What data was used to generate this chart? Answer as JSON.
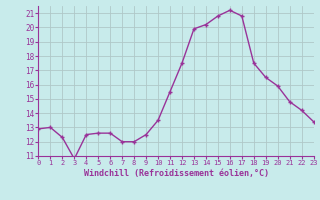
{
  "x": [
    0,
    1,
    2,
    3,
    4,
    5,
    6,
    7,
    8,
    9,
    10,
    11,
    12,
    13,
    14,
    15,
    16,
    17,
    18,
    19,
    20,
    21,
    22,
    23
  ],
  "y": [
    12.9,
    13.0,
    12.3,
    10.8,
    12.5,
    12.6,
    12.6,
    12.0,
    12.0,
    12.5,
    13.5,
    15.5,
    17.5,
    19.9,
    20.2,
    20.8,
    21.2,
    20.8,
    17.5,
    16.5,
    15.9,
    14.8,
    14.2,
    13.4
  ],
  "ylim": [
    11,
    21.5
  ],
  "xlim": [
    0,
    23
  ],
  "yticks": [
    11,
    12,
    13,
    14,
    15,
    16,
    17,
    18,
    19,
    20,
    21
  ],
  "xticks": [
    0,
    1,
    2,
    3,
    4,
    5,
    6,
    7,
    8,
    9,
    10,
    11,
    12,
    13,
    14,
    15,
    16,
    17,
    18,
    19,
    20,
    21,
    22,
    23
  ],
  "xlabel": "Windchill (Refroidissement éolien,°C)",
  "line_color": "#993399",
  "marker": "+",
  "bg_color": "#c8ebeb",
  "grid_color": "#b0c8c8",
  "tick_color": "#993399",
  "label_color": "#993399",
  "font_family": "monospace",
  "spine_color": "#993399"
}
